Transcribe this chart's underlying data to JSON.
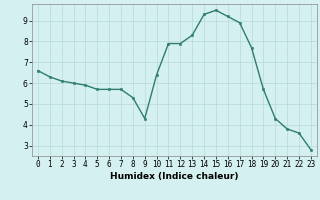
{
  "x": [
    0,
    1,
    2,
    3,
    4,
    5,
    6,
    7,
    8,
    9,
    10,
    11,
    12,
    13,
    14,
    15,
    16,
    17,
    18,
    19,
    20,
    21,
    22,
    23
  ],
  "y": [
    6.6,
    6.3,
    6.1,
    6.0,
    5.9,
    5.7,
    5.7,
    5.7,
    5.3,
    4.3,
    6.4,
    7.9,
    7.9,
    8.3,
    9.3,
    9.5,
    9.2,
    8.9,
    7.7,
    5.7,
    4.3,
    3.8,
    3.6,
    2.8
  ],
  "line_color": "#2e7d6e",
  "marker": "s",
  "markersize": 2.0,
  "linewidth": 1.0,
  "xlabel": "Humidex (Indice chaleur)",
  "xlabel_fontsize": 6.5,
  "ylabel_ticks": [
    3,
    4,
    5,
    6,
    7,
    8,
    9
  ],
  "xlim": [
    -0.5,
    23.5
  ],
  "ylim": [
    2.5,
    9.8
  ],
  "bg_color": "#d4f0f0",
  "grid_color": "#b8d8d8",
  "tick_fontsize": 5.5
}
